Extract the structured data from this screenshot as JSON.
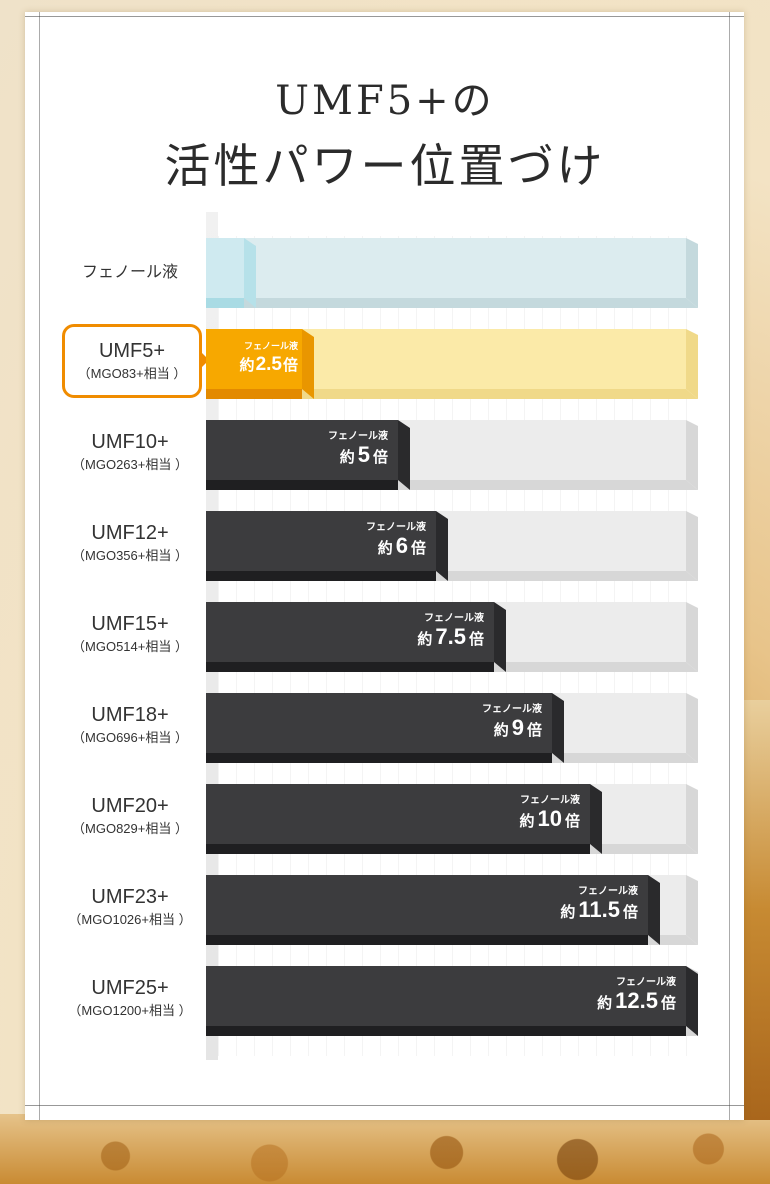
{
  "title_line1": "UMF5+の",
  "title_line2": "活性パワー位置づけ",
  "caption_label": "フェノール液",
  "prefix": "約",
  "suffix": "倍",
  "colors": {
    "dark": "#3c3c3e",
    "highlight": "#f7a800",
    "highlight_border": "#f08c00",
    "reference": "#cfeaf0",
    "track_gray": "#ececec",
    "track_yellow": "#fbeaa8"
  },
  "chart_data": {
    "type": "bar",
    "orientation": "horizontal",
    "categories": [
      {
        "label": "フェノール液",
        "sub": ""
      },
      {
        "label": "UMF5+",
        "sub": "（MGO83+相当 ）"
      },
      {
        "label": "UMF10+",
        "sub": "（MGO263+相当 ）"
      },
      {
        "label": "UMF12+",
        "sub": "（MGO356+相当 ）"
      },
      {
        "label": "UMF15+",
        "sub": "（MGO514+相当 ）"
      },
      {
        "label": "UMF18+",
        "sub": "（MGO696+相当 ）"
      },
      {
        "label": "UMF20+",
        "sub": "（MGO829+相当 ）"
      },
      {
        "label": "UMF23+",
        "sub": "（MGO1026+相当 ）"
      },
      {
        "label": "UMF25+",
        "sub": "（MGO1200+相当 ）"
      }
    ],
    "values": [
      1,
      2.5,
      5,
      6,
      7.5,
      9,
      10,
      11.5,
      12.5
    ],
    "value_labels": [
      "",
      "2.5",
      "5",
      "6",
      "7.5",
      "9",
      "10",
      "11.5",
      "12.5"
    ],
    "highlight_index": 1,
    "reference_index": 0,
    "xlim": [
      0,
      12.5
    ]
  }
}
